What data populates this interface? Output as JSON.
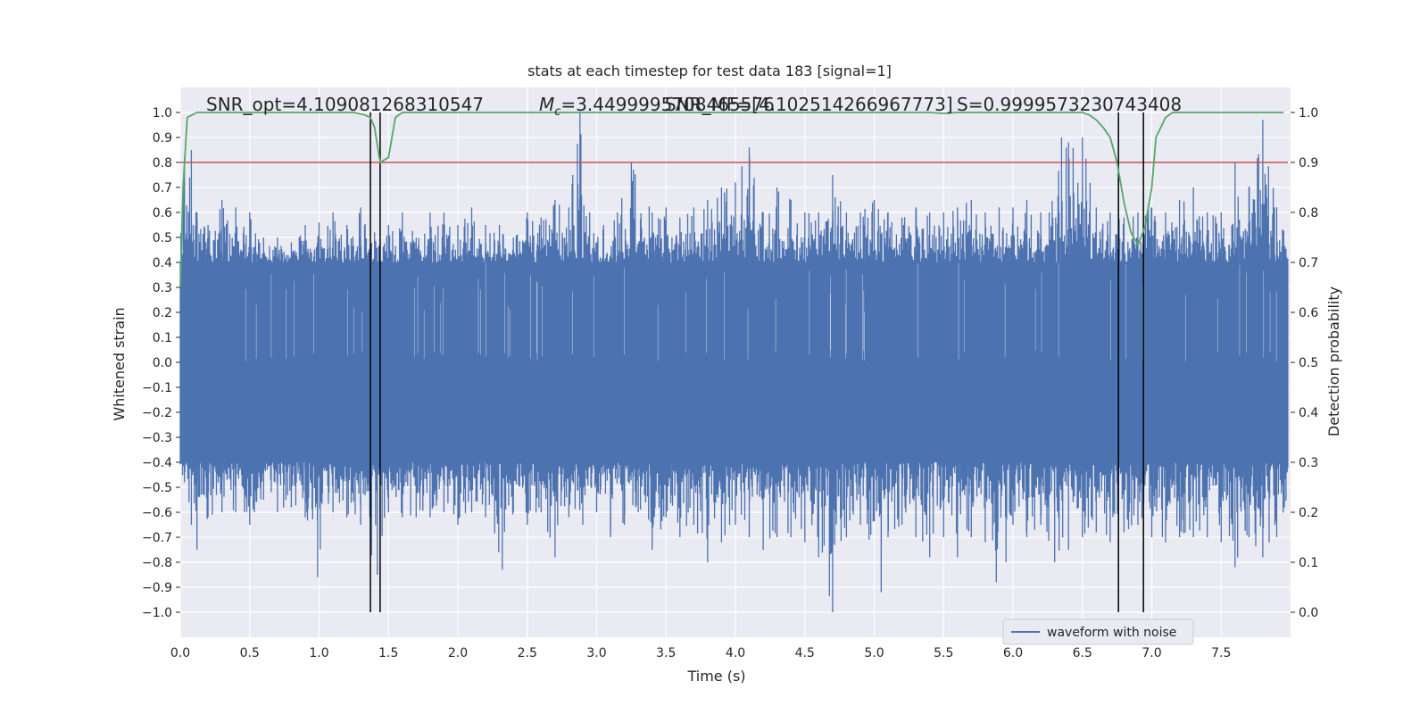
{
  "chart_data": {
    "type": "line",
    "title": "stats at each timestep for test data 183 [signal=1]",
    "xlabel": "Time (s)",
    "ylabel": "Whitened strain",
    "y2label": "Detection probability",
    "xlim": [
      0,
      8.0
    ],
    "ylim": [
      -1.1,
      1.1
    ],
    "y2lim": [
      -0.05,
      1.05
    ],
    "xticks": [
      "0.0",
      "0.5",
      "1.0",
      "1.5",
      "2.0",
      "2.5",
      "3.0",
      "3.5",
      "4.0",
      "4.5",
      "5.0",
      "5.5",
      "6.0",
      "6.5",
      "7.0",
      "7.5"
    ],
    "yticks": [
      "−1.0",
      "−0.9",
      "−0.8",
      "−0.7",
      "−0.6",
      "−0.5",
      "−0.4",
      "−0.3",
      "−0.2",
      "−0.1",
      "0.0",
      "0.1",
      "0.2",
      "0.3",
      "0.4",
      "0.5",
      "0.6",
      "0.7",
      "0.8",
      "0.9",
      "1.0"
    ],
    "y2ticks": [
      "0.0",
      "0.1",
      "0.2",
      "0.3",
      "0.4",
      "0.5",
      "0.6",
      "0.7",
      "0.8",
      "0.9",
      "1.0"
    ],
    "grid": true,
    "background": "#eaeaf2",
    "annotations": {
      "snr_opt": "SNR_opt=4.109081268310547",
      "mc": "=3.4499995708465576",
      "mc_symbol_main": "M",
      "mc_symbol_sub": "c",
      "snr_mf": "SNR_MF=[4.102514266967773]",
      "s": "S=0.9999573230743408"
    },
    "legend": {
      "location": "lower-right",
      "label": "waveform with noise"
    },
    "series": [
      {
        "name": "waveform with noise",
        "color": "#4c72b0",
        "kind": "noise-envelope",
        "upper_peaks": [
          [
            0.03,
            0.82
          ],
          [
            0.08,
            0.85
          ],
          [
            0.12,
            0.6
          ],
          [
            0.2,
            0.55
          ],
          [
            0.3,
            0.65
          ],
          [
            0.4,
            0.62
          ],
          [
            0.5,
            0.6
          ],
          [
            0.6,
            0.5
          ],
          [
            0.7,
            0.5
          ],
          [
            0.8,
            0.48
          ],
          [
            0.9,
            0.55
          ],
          [
            1.0,
            0.56
          ],
          [
            1.1,
            0.6
          ],
          [
            1.2,
            0.55
          ],
          [
            1.3,
            0.62
          ],
          [
            1.4,
            0.52
          ],
          [
            1.5,
            0.55
          ],
          [
            1.6,
            0.6
          ],
          [
            1.7,
            0.5
          ],
          [
            1.8,
            0.6
          ],
          [
            1.9,
            0.6
          ],
          [
            2.0,
            0.55
          ],
          [
            2.1,
            0.62
          ],
          [
            2.2,
            0.55
          ],
          [
            2.3,
            0.55
          ],
          [
            2.4,
            0.5
          ],
          [
            2.5,
            0.6
          ],
          [
            2.6,
            0.58
          ],
          [
            2.7,
            0.65
          ],
          [
            2.8,
            0.62
          ],
          [
            2.88,
            1.0
          ],
          [
            2.95,
            0.6
          ],
          [
            3.05,
            0.55
          ],
          [
            3.15,
            0.6
          ],
          [
            3.25,
            0.8
          ],
          [
            3.4,
            0.6
          ],
          [
            3.5,
            0.62
          ],
          [
            3.6,
            0.58
          ],
          [
            3.7,
            0.62
          ],
          [
            3.8,
            0.65
          ],
          [
            3.9,
            0.7
          ],
          [
            4.0,
            0.72
          ],
          [
            4.1,
            0.86
          ],
          [
            4.2,
            0.6
          ],
          [
            4.3,
            0.7
          ],
          [
            4.4,
            0.65
          ],
          [
            4.5,
            0.6
          ],
          [
            4.6,
            0.6
          ],
          [
            4.7,
            0.75
          ],
          [
            4.8,
            0.6
          ],
          [
            4.9,
            0.6
          ],
          [
            5.0,
            0.65
          ],
          [
            5.1,
            0.6
          ],
          [
            5.2,
            0.58
          ],
          [
            5.3,
            0.62
          ],
          [
            5.4,
            0.6
          ],
          [
            5.5,
            0.6
          ],
          [
            5.6,
            0.62
          ],
          [
            5.7,
            0.65
          ],
          [
            5.8,
            0.6
          ],
          [
            5.9,
            0.62
          ],
          [
            6.0,
            0.62
          ],
          [
            6.1,
            0.65
          ],
          [
            6.2,
            0.6
          ],
          [
            6.35,
            0.9
          ],
          [
            6.4,
            0.88
          ],
          [
            6.5,
            0.9
          ],
          [
            6.6,
            0.62
          ],
          [
            6.7,
            0.6
          ],
          [
            6.8,
            0.58
          ],
          [
            6.9,
            0.6
          ],
          [
            7.0,
            0.62
          ],
          [
            7.1,
            0.6
          ],
          [
            7.2,
            0.65
          ],
          [
            7.3,
            0.7
          ],
          [
            7.4,
            0.6
          ],
          [
            7.5,
            0.6
          ],
          [
            7.6,
            0.8
          ],
          [
            7.7,
            0.7
          ],
          [
            7.8,
            0.97
          ],
          [
            7.9,
            0.62
          ]
        ],
        "lower_peaks": [
          [
            0.03,
            -0.48
          ],
          [
            0.08,
            -0.65
          ],
          [
            0.12,
            -0.75
          ],
          [
            0.2,
            -0.62
          ],
          [
            0.3,
            -0.6
          ],
          [
            0.4,
            -0.6
          ],
          [
            0.5,
            -0.65
          ],
          [
            0.6,
            -0.55
          ],
          [
            0.7,
            -0.6
          ],
          [
            0.8,
            -0.58
          ],
          [
            0.9,
            -0.62
          ],
          [
            0.99,
            -0.86
          ],
          [
            1.1,
            -0.6
          ],
          [
            1.2,
            -0.62
          ],
          [
            1.3,
            -0.65
          ],
          [
            1.42,
            -0.85
          ],
          [
            1.5,
            -0.6
          ],
          [
            1.6,
            -0.62
          ],
          [
            1.7,
            -0.62
          ],
          [
            1.8,
            -0.62
          ],
          [
            1.9,
            -0.6
          ],
          [
            2.0,
            -0.65
          ],
          [
            2.1,
            -0.6
          ],
          [
            2.2,
            -0.62
          ],
          [
            2.32,
            -0.83
          ],
          [
            2.4,
            -0.6
          ],
          [
            2.5,
            -0.65
          ],
          [
            2.6,
            -0.6
          ],
          [
            2.7,
            -0.78
          ],
          [
            2.8,
            -0.62
          ],
          [
            2.9,
            -0.65
          ],
          [
            3.0,
            -0.6
          ],
          [
            3.1,
            -0.7
          ],
          [
            3.2,
            -0.65
          ],
          [
            3.3,
            -0.6
          ],
          [
            3.4,
            -0.75
          ],
          [
            3.5,
            -0.62
          ],
          [
            3.6,
            -0.7
          ],
          [
            3.7,
            -0.65
          ],
          [
            3.8,
            -0.8
          ],
          [
            3.9,
            -0.72
          ],
          [
            4.0,
            -0.65
          ],
          [
            4.1,
            -0.7
          ],
          [
            4.2,
            -0.75
          ],
          [
            4.3,
            -0.7
          ],
          [
            4.4,
            -0.7
          ],
          [
            4.5,
            -0.72
          ],
          [
            4.6,
            -0.78
          ],
          [
            4.7,
            -1.0
          ],
          [
            4.8,
            -0.7
          ],
          [
            4.9,
            -0.65
          ],
          [
            5.05,
            -0.92
          ],
          [
            5.1,
            -0.7
          ],
          [
            5.2,
            -0.65
          ],
          [
            5.3,
            -0.7
          ],
          [
            5.4,
            -0.78
          ],
          [
            5.5,
            -0.7
          ],
          [
            5.6,
            -0.78
          ],
          [
            5.7,
            -0.7
          ],
          [
            5.8,
            -0.72
          ],
          [
            5.88,
            -0.88
          ],
          [
            5.95,
            -0.8
          ],
          [
            6.0,
            -0.65
          ],
          [
            6.1,
            -0.7
          ],
          [
            6.2,
            -0.65
          ],
          [
            6.3,
            -0.8
          ],
          [
            6.4,
            -0.75
          ],
          [
            6.5,
            -0.7
          ],
          [
            6.6,
            -0.68
          ],
          [
            6.7,
            -0.72
          ],
          [
            6.8,
            -0.68
          ],
          [
            6.9,
            -0.65
          ],
          [
            7.0,
            -0.7
          ],
          [
            7.1,
            -0.72
          ],
          [
            7.2,
            -0.7
          ],
          [
            7.3,
            -0.7
          ],
          [
            7.4,
            -0.7
          ],
          [
            7.5,
            -0.72
          ],
          [
            7.6,
            -0.82
          ],
          [
            7.7,
            -0.7
          ],
          [
            7.8,
            -0.78
          ],
          [
            7.9,
            -0.7
          ]
        ],
        "core_amplitude": 0.4
      },
      {
        "name": "detection probability",
        "color": "#55a868",
        "axis": "right",
        "points": [
          [
            0.0,
            0.65
          ],
          [
            0.02,
            0.85
          ],
          [
            0.05,
            0.99
          ],
          [
            0.12,
            1.0
          ],
          [
            0.2,
            1.0
          ],
          [
            1.25,
            1.0
          ],
          [
            1.33,
            0.995
          ],
          [
            1.37,
            0.99
          ],
          [
            1.4,
            0.97
          ],
          [
            1.44,
            0.9
          ],
          [
            1.5,
            0.91
          ],
          [
            1.55,
            0.99
          ],
          [
            1.6,
            1.0
          ],
          [
            2.0,
            1.0
          ],
          [
            5.4,
            1.0
          ],
          [
            5.5,
            0.998
          ],
          [
            5.6,
            1.0
          ],
          [
            6.5,
            1.0
          ],
          [
            6.55,
            0.995
          ],
          [
            6.6,
            0.985
          ],
          [
            6.65,
            0.97
          ],
          [
            6.7,
            0.95
          ],
          [
            6.75,
            0.9
          ],
          [
            6.8,
            0.82
          ],
          [
            6.85,
            0.76
          ],
          [
            6.9,
            0.735
          ],
          [
            6.95,
            0.77
          ],
          [
            7.0,
            0.85
          ],
          [
            7.03,
            0.95
          ],
          [
            7.1,
            0.99
          ],
          [
            7.15,
            1.0
          ],
          [
            7.95,
            1.0
          ]
        ]
      }
    ],
    "threshold": {
      "value": 0.9,
      "axis": "right",
      "color": "#c44e52"
    },
    "vlines": [
      1.37,
      1.44,
      6.76,
      6.94
    ],
    "vline_color": "#000000"
  }
}
